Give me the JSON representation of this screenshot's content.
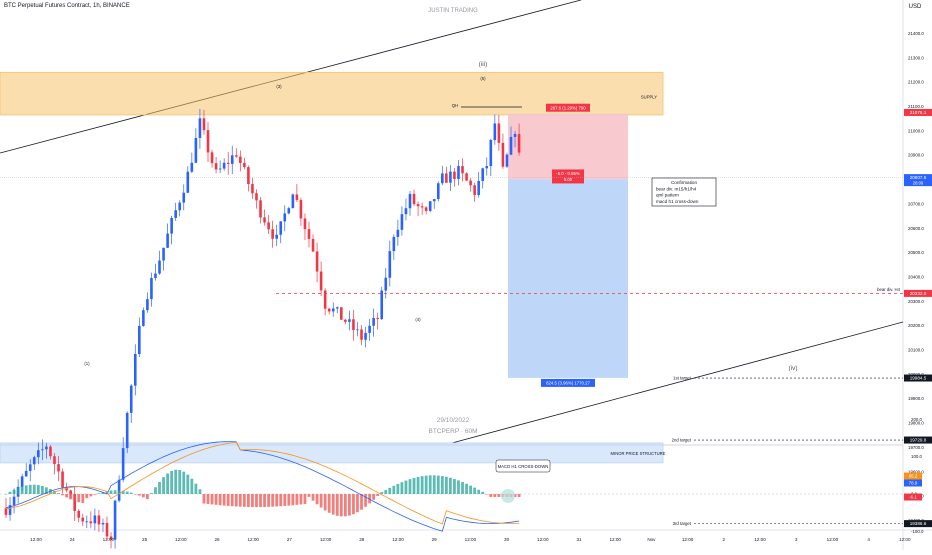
{
  "header": {
    "title": "BTC Perpetual Futures Contract, 1h, BINANCE",
    "watermark": "JUSTIN TRADING",
    "currency": "USD"
  },
  "chart_data": {
    "type": "candlestick",
    "symbol": "BTCPERP",
    "interval": "60M",
    "date_watermark": "29/10/2022",
    "symbol_watermark": "BTCPERP · 60M",
    "x_ticks": [
      "12:00",
      "24",
      "12:00",
      "25",
      "12:00",
      "26",
      "12:00",
      "27",
      "12:00",
      "28",
      "12:00",
      "29",
      "12:00",
      "30",
      "12:00",
      "31",
      "12:00",
      "Nov",
      "12:00",
      "2",
      "12:00",
      "3",
      "12:00",
      "4",
      "12:00"
    ],
    "y_axis": {
      "min": 19375,
      "max": 21600,
      "ticks": [
        21400,
        21300,
        21200,
        21100,
        21000,
        20900,
        20800,
        20700,
        20600,
        20500,
        20400,
        20300,
        20200,
        20100,
        20000,
        19900,
        19800,
        19700,
        19600,
        19500,
        19400
      ],
      "tick_labels": [
        "21400.0",
        "21300.0",
        "21200.0",
        "21100.0",
        "21000.0",
        "20900.0",
        "20800.0",
        "20700.0",
        "20600.0",
        "20500.0",
        "20400.0",
        "20300.0",
        "20200.0",
        "20100.0",
        "20000.0",
        "19900.0",
        "19800.0",
        "19700.0",
        "19600.0",
        "19500.0",
        "19400.0"
      ]
    },
    "candle_path": [
      [
        0,
        19450
      ],
      [
        6,
        19620
      ],
      [
        10,
        19710
      ],
      [
        14,
        19560
      ],
      [
        18,
        19410
      ],
      [
        22,
        19400
      ],
      [
        26,
        19330
      ],
      [
        29,
        19720
      ],
      [
        34,
        20290
      ],
      [
        39,
        20520
      ],
      [
        45,
        20820
      ],
      [
        48,
        21030
      ],
      [
        52,
        20820
      ],
      [
        57,
        20910
      ],
      [
        62,
        20700
      ],
      [
        67,
        20550
      ],
      [
        71,
        20760
      ],
      [
        76,
        20510
      ],
      [
        79,
        20290
      ],
      [
        84,
        20220
      ],
      [
        88,
        20150
      ],
      [
        92,
        20230
      ],
      [
        96,
        20580
      ],
      [
        100,
        20720
      ],
      [
        104,
        20650
      ],
      [
        108,
        20800
      ],
      [
        112,
        20830
      ],
      [
        116,
        20750
      ],
      [
        119,
        20860
      ],
      [
        121,
        21030
      ],
      [
        123,
        20830
      ],
      [
        126,
        21010
      ],
      [
        127,
        20890
      ]
    ],
    "price_labels": [
      {
        "price": 21075.1,
        "text": "21075.1",
        "color": "#f23645"
      },
      {
        "price": 20807.5,
        "text": "20807.5",
        "sub": "28:09",
        "color": "#2962ff"
      },
      {
        "price": 20332.0,
        "text": "20332.0",
        "color": "#f23645"
      },
      {
        "price": 19984.5,
        "text": "19984.5",
        "color": "#131722"
      },
      {
        "price": 19729.8,
        "text": "19729.8",
        "color": "#131722"
      },
      {
        "price": 19386.6,
        "text": "19386.6",
        "color": "#131722"
      }
    ],
    "zones": [
      {
        "label": "SUPPLY",
        "top": 21240,
        "bottom": 21065,
        "color": "#f6c26b"
      },
      {
        "label": "MINOR PRICE STRUCTURE",
        "top": 19718,
        "bottom": 19636,
        "color": "#bbd5f7"
      }
    ],
    "position": {
      "entry": 20800,
      "stop": 21070,
      "target": 19985,
      "stop_label": "267.6 (1.29%) 790",
      "entry_label": "-5.0 - 0.55%",
      "entry_label_2": "5.00",
      "target_label": "824.5 (3.96%) 1770.27"
    },
    "targets": [
      {
        "label": "1st target",
        "price": 19984.5
      },
      {
        "label": "2nd target",
        "price": 19729.8
      },
      {
        "label": "3rd target",
        "price": 19386.6
      }
    ],
    "bear_div_label": "bear div. H4",
    "bear_div_price": 20332,
    "wave_labels": [
      "(iii)",
      "(5)",
      "(3)",
      "(4)",
      "(1)",
      "(iv)",
      "QH"
    ],
    "confirmation_box": [
      "Confirmation",
      "bear div. m15/h1/h4",
      "qml pattern",
      "macd h1 cross-down"
    ],
    "macd": {
      "y_ticks": [
        200.0,
        100.0,
        0.0,
        -100.0
      ],
      "y_tick_labels": [
        "200.0",
        "100.0",
        "0.0",
        "-100.0"
      ],
      "labels": [
        {
          "text": "85.2",
          "color": "#f7931a"
        },
        {
          "text": "78.9",
          "color": "#2962ff"
        },
        {
          "text": "-6.1",
          "color": "#f23645"
        }
      ],
      "annotation": "MACD H1 CROSS-DOWN"
    }
  }
}
